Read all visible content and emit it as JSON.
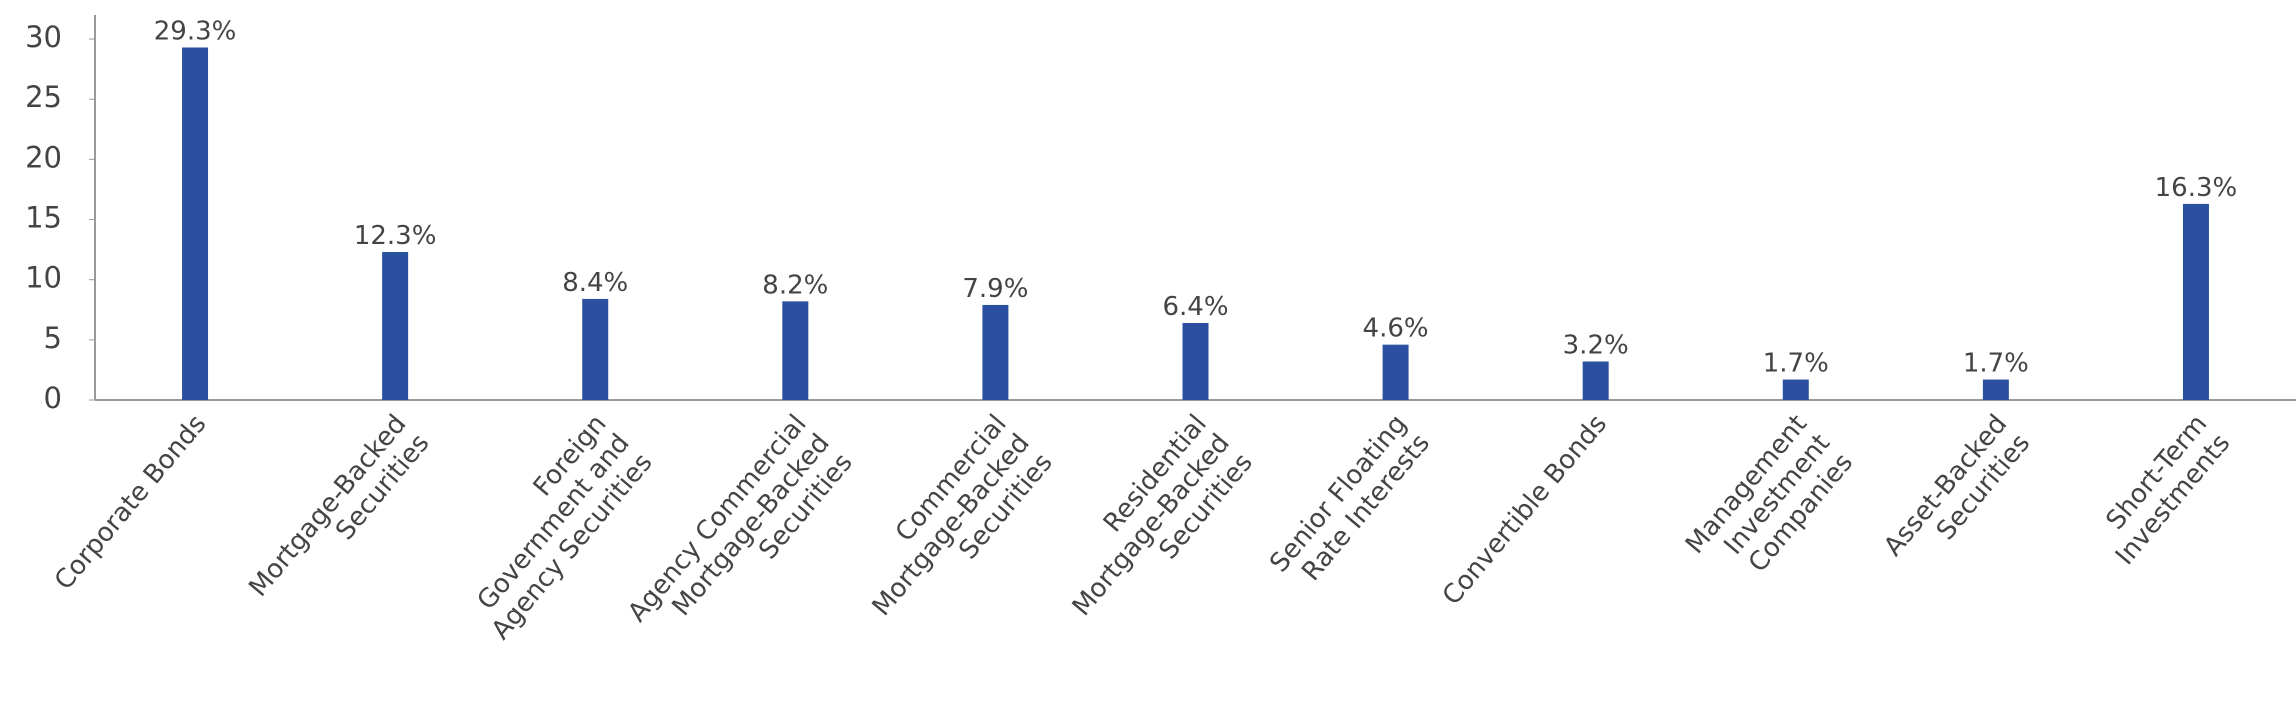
{
  "chart_data": {
    "type": "bar",
    "categories": [
      [
        "Corporate Bonds"
      ],
      [
        "Mortgage-Backed",
        "Securities"
      ],
      [
        "Foreign",
        "Government and",
        "Agency Securities"
      ],
      [
        "Agency Commercial",
        "Mortgage-Backed",
        "Securities"
      ],
      [
        "Commercial",
        "Mortgage-Backed",
        "Securities"
      ],
      [
        "Residential",
        "Mortgage-Backed",
        "Securities"
      ],
      [
        "Senior Floating",
        "Rate Interests"
      ],
      [
        "Convertible Bonds"
      ],
      [
        "Management",
        "Investment",
        "Companies"
      ],
      [
        "Asset-Backed",
        "Securities"
      ],
      [
        "Short-Term",
        "Investments"
      ]
    ],
    "values": [
      29.3,
      12.3,
      8.4,
      8.2,
      7.9,
      6.4,
      4.6,
      3.2,
      1.7,
      1.7,
      16.3
    ],
    "value_labels": [
      "29.3%",
      "12.3%",
      "8.4%",
      "8.2%",
      "7.9%",
      "6.4%",
      "4.6%",
      "3.2%",
      "1.7%",
      "1.7%",
      "16.3%"
    ],
    "color": "#2b50a0",
    "ylim": [
      0,
      32
    ],
    "yticks": [
      0,
      5,
      10,
      15,
      20,
      25,
      30
    ],
    "grid": false
  }
}
